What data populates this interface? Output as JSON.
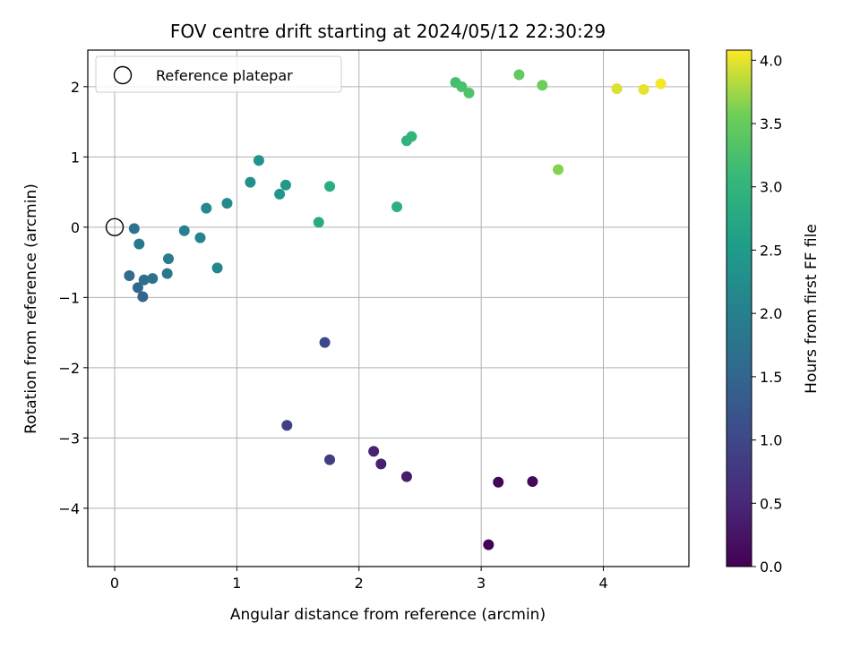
{
  "chart_data": {
    "type": "scatter",
    "title": "FOV centre drift starting at 2024/05/12 22:30:29",
    "xlabel": "Angular distance from reference (arcmin)",
    "ylabel": "Rotation from reference (arcmin)",
    "xlim": [
      -0.22,
      4.7
    ],
    "ylim": [
      -4.83,
      2.52
    ],
    "x_ticks": [
      0,
      1,
      2,
      3,
      4
    ],
    "x_tick_labels": [
      "0",
      "1",
      "2",
      "3",
      "4"
    ],
    "y_ticks": [
      -4,
      -3,
      -2,
      -1,
      0,
      1,
      2
    ],
    "y_tick_labels": [
      "−4",
      "−3",
      "−2",
      "−1",
      "0",
      "1",
      "2"
    ],
    "grid": true,
    "legend": {
      "placement": "top-left",
      "entries": [
        "Reference platepar"
      ]
    },
    "reference_point": {
      "x": 0,
      "y": 0
    },
    "colorbar": {
      "label": "Hours from first FF file",
      "min": 0.0,
      "max": 4.08,
      "colormap": "viridis",
      "ticks": [
        0.0,
        0.5,
        1.0,
        1.5,
        2.0,
        2.5,
        3.0,
        3.5,
        4.0
      ],
      "tick_labels": [
        "0.0",
        "0.5",
        "1.0",
        "1.5",
        "2.0",
        "2.5",
        "3.0",
        "3.5",
        "4.0"
      ]
    },
    "points": [
      {
        "x": 3.06,
        "y": -4.52,
        "t": 0.0
      },
      {
        "x": 3.14,
        "y": -3.63,
        "t": 0.05
      },
      {
        "x": 3.42,
        "y": -3.62,
        "t": 0.1
      },
      {
        "x": 2.39,
        "y": -3.55,
        "t": 0.35
      },
      {
        "x": 2.18,
        "y": -3.37,
        "t": 0.4
      },
      {
        "x": 2.12,
        "y": -3.19,
        "t": 0.45
      },
      {
        "x": 1.76,
        "y": -3.31,
        "t": 0.85
      },
      {
        "x": 1.41,
        "y": -2.82,
        "t": 0.9
      },
      {
        "x": 1.72,
        "y": -1.64,
        "t": 1.0
      },
      {
        "x": 0.23,
        "y": -0.99,
        "t": 1.5
      },
      {
        "x": 0.19,
        "y": -0.86,
        "t": 1.55
      },
      {
        "x": 0.12,
        "y": -0.69,
        "t": 1.6
      },
      {
        "x": 0.24,
        "y": -0.75,
        "t": 1.65
      },
      {
        "x": 0.31,
        "y": -0.73,
        "t": 1.7
      },
      {
        "x": 0.43,
        "y": -0.66,
        "t": 1.85
      },
      {
        "x": 0.44,
        "y": -0.45,
        "t": 1.9
      },
      {
        "x": 0.2,
        "y": -0.24,
        "t": 1.85
      },
      {
        "x": 0.16,
        "y": -0.02,
        "t": 1.75
      },
      {
        "x": 0.57,
        "y": -0.05,
        "t": 2.0
      },
      {
        "x": 0.7,
        "y": -0.15,
        "t": 2.05
      },
      {
        "x": 0.84,
        "y": -0.58,
        "t": 2.1
      },
      {
        "x": 0.75,
        "y": 0.27,
        "t": 2.15
      },
      {
        "x": 0.92,
        "y": 0.34,
        "t": 2.2
      },
      {
        "x": 1.11,
        "y": 0.64,
        "t": 2.3
      },
      {
        "x": 1.18,
        "y": 0.95,
        "t": 2.35
      },
      {
        "x": 1.35,
        "y": 0.47,
        "t": 2.4
      },
      {
        "x": 1.4,
        "y": 0.6,
        "t": 2.45
      },
      {
        "x": 1.76,
        "y": 0.58,
        "t": 2.85
      },
      {
        "x": 1.67,
        "y": 0.07,
        "t": 2.8
      },
      {
        "x": 2.31,
        "y": 0.29,
        "t": 2.9
      },
      {
        "x": 2.39,
        "y": 1.23,
        "t": 2.95
      },
      {
        "x": 2.43,
        "y": 1.29,
        "t": 3.0
      },
      {
        "x": 2.79,
        "y": 2.06,
        "t": 3.2
      },
      {
        "x": 2.84,
        "y": 2.0,
        "t": 3.25
      },
      {
        "x": 2.9,
        "y": 1.91,
        "t": 3.3
      },
      {
        "x": 3.31,
        "y": 2.17,
        "t": 3.45
      },
      {
        "x": 3.5,
        "y": 2.02,
        "t": 3.55
      },
      {
        "x": 3.63,
        "y": 0.82,
        "t": 3.65
      },
      {
        "x": 4.11,
        "y": 1.97,
        "t": 3.95
      },
      {
        "x": 4.33,
        "y": 1.96,
        "t": 4.0
      },
      {
        "x": 4.47,
        "y": 2.04,
        "t": 4.05
      }
    ]
  }
}
